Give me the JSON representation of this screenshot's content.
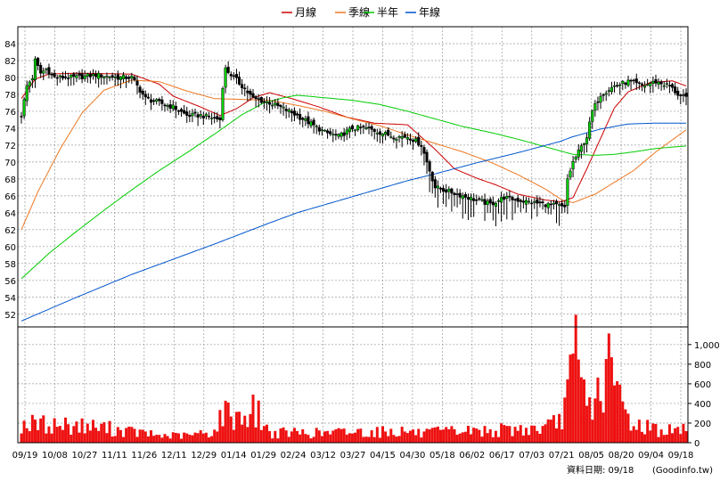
{
  "chart_data": {
    "type": "candlestick-with-volume",
    "legend": [
      {
        "label": "月線",
        "color": "#cc0000"
      },
      {
        "label": "季線",
        "color": "#ee7722"
      },
      {
        "label": "半年",
        "color": "#00cc00"
      },
      {
        "label": "年線",
        "color": "#0055cc"
      }
    ],
    "price_axis": {
      "ylim": [
        50.5,
        86
      ],
      "ticks": [
        52,
        54,
        56,
        58,
        60,
        62,
        64,
        66,
        68,
        70,
        72,
        74,
        76,
        78,
        80,
        82,
        84
      ]
    },
    "volume_axis": {
      "ylim": [
        0,
        1180
      ],
      "ticks": [
        0,
        200,
        400,
        600,
        800,
        1000
      ],
      "tick_labels": [
        "0",
        "200",
        "400",
        "600",
        "800",
        "1,000"
      ]
    },
    "x_tick_labels": [
      "09/19",
      "10/08",
      "10/27",
      "11/11",
      "11/26",
      "12/11",
      "12/29",
      "01/14",
      "01/29",
      "02/24",
      "03/12",
      "03/27",
      "04/15",
      "04/30",
      "05/18",
      "06/02",
      "06/17",
      "07/03",
      "07/21",
      "08/05",
      "08/20",
      "09/04",
      "09/18"
    ],
    "footer": "資料日期: 09/18",
    "source": "(Goodinfo.tw)",
    "price_anchors": [
      [
        0,
        75.5
      ],
      [
        2,
        79
      ],
      [
        4,
        80
      ],
      [
        5,
        82
      ],
      [
        7,
        80.5
      ],
      [
        9,
        81
      ],
      [
        12,
        80
      ],
      [
        20,
        80
      ],
      [
        27,
        80.3
      ],
      [
        35,
        80
      ],
      [
        40,
        80
      ],
      [
        42,
        79
      ],
      [
        45,
        77.5
      ],
      [
        50,
        77
      ],
      [
        55,
        76.5
      ],
      [
        60,
        75.5
      ],
      [
        65,
        75.5
      ],
      [
        70,
        75.2
      ],
      [
        72,
        75
      ],
      [
        73,
        79
      ],
      [
        74,
        81
      ],
      [
        77,
        80
      ],
      [
        80,
        79
      ],
      [
        84,
        77.5
      ],
      [
        90,
        77
      ],
      [
        95,
        76.3
      ],
      [
        100,
        75.5
      ],
      [
        105,
        74.5
      ],
      [
        110,
        73.5
      ],
      [
        115,
        73
      ],
      [
        120,
        74
      ],
      [
        125,
        74
      ],
      [
        130,
        73.5
      ],
      [
        135,
        73
      ],
      [
        140,
        73
      ],
      [
        143,
        72.5
      ],
      [
        145,
        72
      ],
      [
        148,
        69
      ],
      [
        150,
        67
      ],
      [
        155,
        66.5
      ],
      [
        160,
        66
      ],
      [
        165,
        65.5
      ],
      [
        170,
        65
      ],
      [
        175,
        65.8
      ],
      [
        180,
        65.5
      ],
      [
        185,
        65.2
      ],
      [
        190,
        65
      ],
      [
        195,
        64.8
      ],
      [
        197,
        64.5
      ],
      [
        198,
        68
      ],
      [
        200,
        70
      ],
      [
        205,
        73
      ],
      [
        207,
        76
      ],
      [
        210,
        78
      ],
      [
        215,
        79
      ],
      [
        220,
        79.5
      ],
      [
        225,
        79
      ],
      [
        230,
        79.5
      ],
      [
        235,
        79
      ],
      [
        238,
        78
      ],
      [
        241,
        77.5
      ]
    ],
    "volume_anchors": [
      [
        0,
        240
      ],
      [
        10,
        230
      ],
      [
        20,
        220
      ],
      [
        30,
        190
      ],
      [
        40,
        140
      ],
      [
        50,
        90
      ],
      [
        60,
        90
      ],
      [
        70,
        140
      ],
      [
        73,
        380
      ],
      [
        80,
        330
      ],
      [
        85,
        420
      ],
      [
        90,
        120
      ],
      [
        100,
        130
      ],
      [
        110,
        120
      ],
      [
        120,
        140
      ],
      [
        130,
        140
      ],
      [
        140,
        150
      ],
      [
        145,
        110
      ],
      [
        150,
        130
      ],
      [
        160,
        150
      ],
      [
        170,
        150
      ],
      [
        180,
        170
      ],
      [
        190,
        180
      ],
      [
        195,
        270
      ],
      [
        198,
        620
      ],
      [
        200,
        900
      ],
      [
        201,
        1100
      ],
      [
        203,
        750
      ],
      [
        205,
        480
      ],
      [
        210,
        620
      ],
      [
        212,
        960
      ],
      [
        214,
        860
      ],
      [
        218,
        450
      ],
      [
        222,
        220
      ],
      [
        226,
        220
      ],
      [
        232,
        150
      ],
      [
        241,
        160
      ]
    ],
    "moving_averages": {
      "月線": [
        [
          0,
          77.5
        ],
        [
          5,
          79.8
        ],
        [
          10,
          80.4
        ],
        [
          20,
          80.5
        ],
        [
          40,
          80.4
        ],
        [
          50,
          79.2
        ],
        [
          55,
          77.8
        ],
        [
          65,
          76.5
        ],
        [
          72,
          75.5
        ],
        [
          78,
          76.3
        ],
        [
          84,
          77.6
        ],
        [
          90,
          78.2
        ],
        [
          98,
          77.5
        ],
        [
          108,
          76.5
        ],
        [
          118,
          75.3
        ],
        [
          128,
          74.6
        ],
        [
          140,
          74.4
        ],
        [
          150,
          71.5
        ],
        [
          157,
          69.2
        ],
        [
          165,
          68.1
        ],
        [
          172,
          67.3
        ],
        [
          180,
          66.2
        ],
        [
          190,
          65.5
        ],
        [
          196,
          65.3
        ],
        [
          200,
          65.8
        ],
        [
          205,
          69.2
        ],
        [
          210,
          72.8
        ],
        [
          215,
          76.4
        ],
        [
          220,
          78.3
        ],
        [
          228,
          79.4
        ],
        [
          236,
          79.6
        ],
        [
          241,
          79.0
        ]
      ],
      "季線": [
        [
          0,
          62
        ],
        [
          6,
          66.5
        ],
        [
          14,
          71.5
        ],
        [
          22,
          75.8
        ],
        [
          30,
          78.5
        ],
        [
          40,
          79.7
        ],
        [
          50,
          79.5
        ],
        [
          60,
          78.4
        ],
        [
          70,
          77.5
        ],
        [
          80,
          77.4
        ],
        [
          90,
          77.3
        ],
        [
          100,
          76.7
        ],
        [
          110,
          76.0
        ],
        [
          120,
          75.1
        ],
        [
          130,
          74.3
        ],
        [
          140,
          73.2
        ],
        [
          150,
          72.2
        ],
        [
          160,
          71.2
        ],
        [
          170,
          70.0
        ],
        [
          180,
          68.5
        ],
        [
          190,
          66.8
        ],
        [
          196,
          65.5
        ],
        [
          200,
          65.2
        ],
        [
          208,
          66.2
        ],
        [
          215,
          67.6
        ],
        [
          222,
          69.0
        ],
        [
          230,
          71.2
        ],
        [
          241,
          73.8
        ]
      ],
      "半年": [
        [
          0,
          56.2
        ],
        [
          10,
          59.2
        ],
        [
          20,
          61.8
        ],
        [
          30,
          64.3
        ],
        [
          40,
          66.7
        ],
        [
          50,
          69.0
        ],
        [
          60,
          71.1
        ],
        [
          70,
          73.3
        ],
        [
          80,
          75.6
        ],
        [
          88,
          77.0
        ],
        [
          95,
          77.6
        ],
        [
          100,
          77.9
        ],
        [
          110,
          77.6
        ],
        [
          120,
          77.3
        ],
        [
          130,
          76.8
        ],
        [
          140,
          76.0
        ],
        [
          150,
          75.1
        ],
        [
          160,
          74.2
        ],
        [
          170,
          73.5
        ],
        [
          180,
          72.7
        ],
        [
          190,
          71.8
        ],
        [
          200,
          70.9
        ],
        [
          208,
          70.8
        ],
        [
          215,
          70.9
        ],
        [
          222,
          71.2
        ],
        [
          230,
          71.6
        ],
        [
          241,
          71.9
        ]
      ],
      "年線": [
        [
          0,
          51.2
        ],
        [
          20,
          54.0
        ],
        [
          40,
          56.7
        ],
        [
          60,
          59.1
        ],
        [
          70,
          60.3
        ],
        [
          90,
          62.8
        ],
        [
          100,
          64.0
        ],
        [
          120,
          65.9
        ],
        [
          140,
          67.8
        ],
        [
          150,
          68.6
        ],
        [
          165,
          69.9
        ],
        [
          180,
          71.1
        ],
        [
          195,
          72.4
        ],
        [
          200,
          73.0
        ],
        [
          210,
          73.9
        ],
        [
          220,
          74.5
        ],
        [
          230,
          74.6
        ],
        [
          241,
          74.6
        ]
      ]
    }
  }
}
